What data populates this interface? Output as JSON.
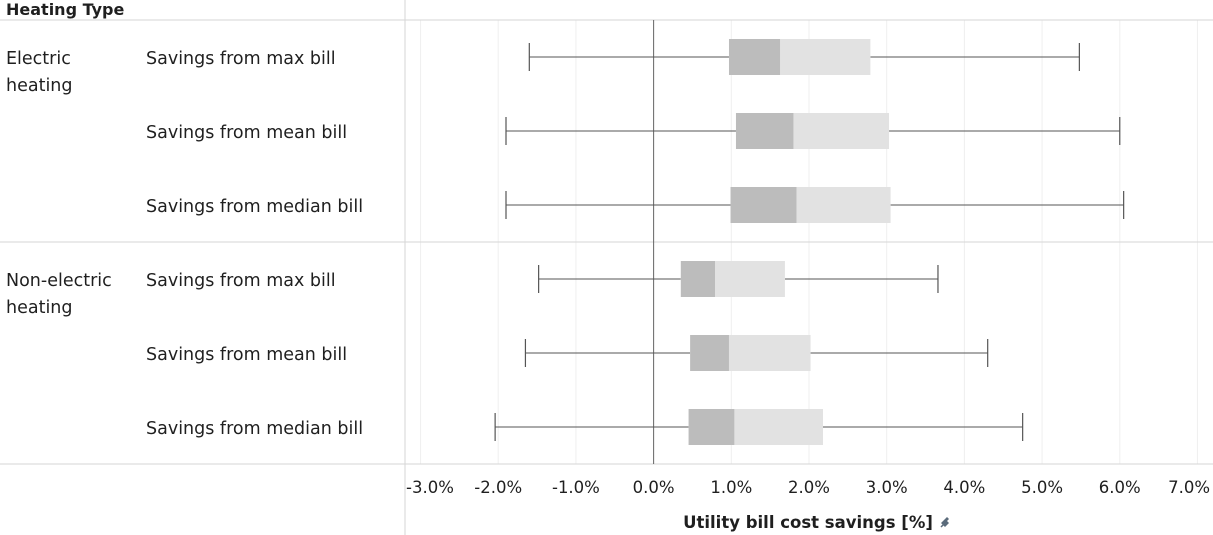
{
  "colors": {
    "box_lower": "#bcbcbc",
    "box_upper": "#e2e2e2",
    "whisker": "#555555",
    "zero_line": "#666666",
    "divider": "#d6d6d6",
    "gridline": "#efefef",
    "pin_icon": "#5b6b7b"
  },
  "chart_data": {
    "type": "boxplot",
    "orientation": "horizontal",
    "row_header": "Heating Type",
    "xlabel": "Utility bill cost savings [%]",
    "x_range": [
      -3.2,
      7.2
    ],
    "x_ticks": [
      "-3.0%",
      "-2.0%",
      "-1.0%",
      "0.0%",
      "1.0%",
      "2.0%",
      "3.0%",
      "4.0%",
      "5.0%",
      "6.0%",
      "7.0%"
    ],
    "tick_values": [
      -3,
      -2,
      -1,
      0,
      1,
      2,
      3,
      4,
      5,
      6,
      7
    ],
    "grid": "vertical",
    "groups": [
      {
        "label_lines": [
          "Electric",
          "heating"
        ],
        "rows": [
          {
            "label": "Savings from max bill",
            "min": -1.6,
            "q1": 0.97,
            "median": 1.63,
            "q3": 2.79,
            "max": 5.48
          },
          {
            "label": "Savings from mean bill",
            "min": -1.9,
            "q1": 1.06,
            "median": 1.8,
            "q3": 3.03,
            "max": 6.0
          },
          {
            "label": "Savings from median bill",
            "min": -1.9,
            "q1": 0.99,
            "median": 1.84,
            "q3": 3.05,
            "max": 6.05
          }
        ]
      },
      {
        "label_lines": [
          "Non-electric",
          "heating"
        ],
        "rows": [
          {
            "label": "Savings from max bill",
            "min": -1.48,
            "q1": 0.35,
            "median": 0.79,
            "q3": 1.69,
            "max": 3.66
          },
          {
            "label": "Savings from mean bill",
            "min": -1.65,
            "q1": 0.47,
            "median": 0.97,
            "q3": 2.02,
            "max": 4.3
          },
          {
            "label": "Savings from median bill",
            "min": -2.04,
            "q1": 0.45,
            "median": 1.04,
            "q3": 2.18,
            "max": 4.75
          }
        ]
      }
    ]
  }
}
